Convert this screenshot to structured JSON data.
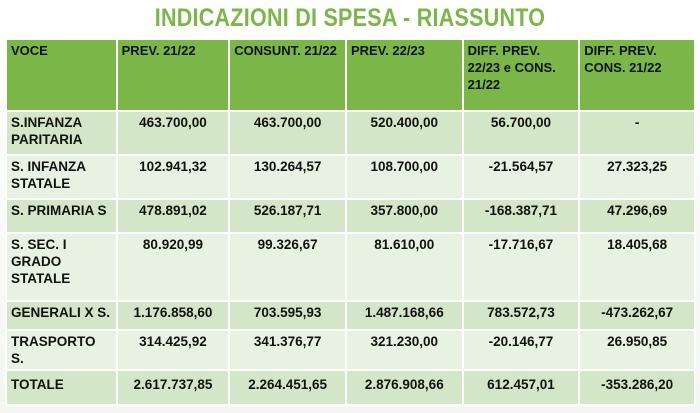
{
  "title": "INDICAZIONI DI SPESA - RIASSUNTO",
  "colors": {
    "title": "#7ab648",
    "header_bg": "#7ab648",
    "row_odd_bg": "#d3e6c8",
    "row_even_bg": "#e8f2e2"
  },
  "table": {
    "headers": [
      "VOCE",
      "PREV. 21/22",
      "CONSUNT. 21/22",
      "PREV. 22/23",
      "DIFF. PREV. 22/23 e CONS. 21/22",
      "DIFF. PREV. CONS. 21/22"
    ],
    "rows": [
      [
        "S.INFANZA PARITARIA",
        "463.700,00",
        "463.700,00",
        "520.400,00",
        "56.700,00",
        "-"
      ],
      [
        "S. INFANZA STATALE",
        "102.941,32",
        "130.264,57",
        "108.700,00",
        "-21.564,57",
        "27.323,25"
      ],
      [
        "S. PRIMARIA S",
        "478.891,02",
        "526.187,71",
        "357.800,00",
        "-168.387,71",
        "47.296,69"
      ],
      [
        "S. SEC. I GRADO STATALE",
        "80.920,99",
        "99.326,67",
        "81.610,00",
        "-17.716,67",
        "18.405,68"
      ],
      [
        "GENERALI X S.",
        "1.176.858,60",
        "703.595,93",
        "1.487.168,66",
        "783.572,73",
        "-473.262,67"
      ],
      [
        "TRASPORTO S.",
        "314.425,92",
        "341.376,77",
        "321.230,00",
        "-20.146,77",
        "26.950,85"
      ],
      [
        "TOTALE",
        "2.617.737,85",
        "2.264.451,65",
        "2.876.908,66",
        "612.457,01",
        "-353.286,20"
      ]
    ]
  }
}
